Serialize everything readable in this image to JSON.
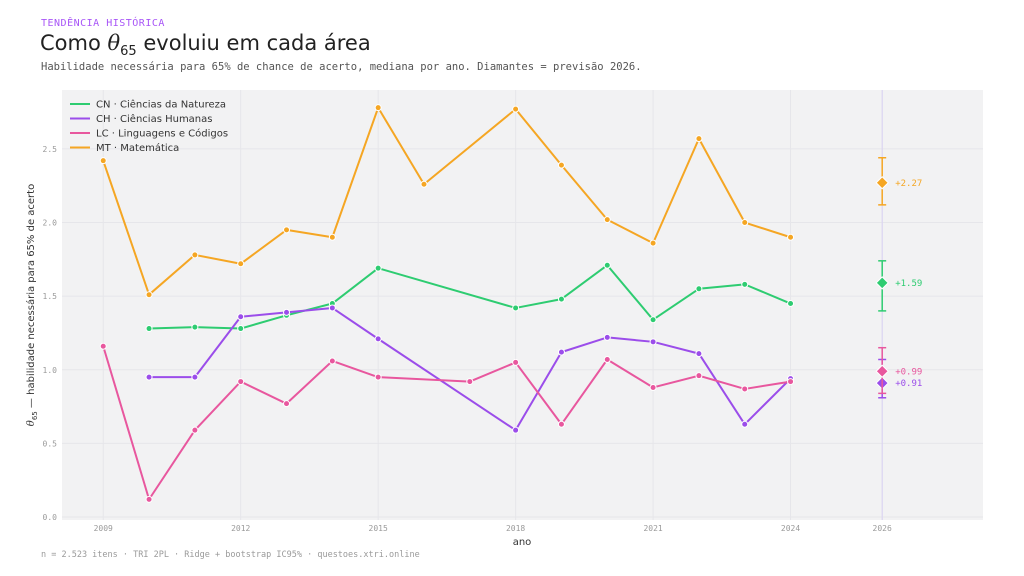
{
  "header": {
    "kicker": "TENDÊNCIA HISTÓRICA",
    "title_pre": "Como ",
    "title_theta": "θ",
    "title_sub": "65",
    "title_post": " evoluiu em cada área",
    "subtitle": "Habilidade necessária para 65% de chance de acerto, mediana por ano. Diamantes = previsão 2026."
  },
  "footer": {
    "text": "n = 2.523 itens  ·  TRI 2PL  ·  Ridge + bootstrap IC95%  ·  questoes.xtri.online"
  },
  "chart_data": {
    "type": "line",
    "xlabel": "ano",
    "ylabel_theta": "θ",
    "ylabel_sub": "65",
    "ylabel_rest": " — habilidade necessária para 65% de acerto",
    "xlim": [
      2008.1,
      2028.2
    ],
    "ylim": [
      -0.02,
      2.9
    ],
    "x_ticks": [
      2009,
      2012,
      2015,
      2018,
      2021,
      2024,
      2026
    ],
    "y_ticks": [
      0.0,
      0.5,
      1.0,
      1.5,
      2.0,
      2.5
    ],
    "y_tick_labels": [
      "0.0",
      "0.5",
      "1.0",
      "1.5",
      "2.0",
      "2.5"
    ],
    "grid": true,
    "legend_position": "top-left",
    "series": [
      {
        "name": "CN · Ciências da Natureza",
        "color": "#2ecc71",
        "x": [
          2010,
          2011,
          2012,
          2013,
          2014,
          2015,
          2018,
          2019,
          2020,
          2021,
          2022,
          2023,
          2024
        ],
        "y": [
          1.28,
          1.29,
          1.28,
          1.37,
          1.45,
          1.69,
          1.42,
          1.48,
          1.71,
          1.34,
          1.55,
          1.58,
          1.45
        ],
        "forecast": {
          "x": 2026,
          "y": 1.59,
          "lo": 1.4,
          "hi": 1.74,
          "label": "+1.59"
        }
      },
      {
        "name": "CH · Ciências Humanas",
        "color": "#9b4dea",
        "x": [
          2010,
          2011,
          2012,
          2013,
          2014,
          2015,
          2018,
          2019,
          2020,
          2021,
          2022,
          2023,
          2024
        ],
        "y": [
          0.95,
          0.95,
          1.36,
          1.39,
          1.42,
          1.21,
          0.59,
          1.12,
          1.22,
          1.19,
          1.11,
          0.63,
          0.94
        ],
        "forecast": {
          "x": 2026,
          "y": 0.91,
          "lo": 0.81,
          "hi": 1.07,
          "label": "+0.91"
        }
      },
      {
        "name": "LC · Linguagens e Códigos",
        "color": "#e8579e",
        "x": [
          2009,
          2010,
          2011,
          2012,
          2013,
          2014,
          2015,
          2017,
          2018,
          2019,
          2020,
          2021,
          2022,
          2023,
          2024
        ],
        "y": [
          1.16,
          0.12,
          0.59,
          0.92,
          0.77,
          1.06,
          0.95,
          0.92,
          1.05,
          0.63,
          1.07,
          0.88,
          0.96,
          0.87,
          0.92
        ],
        "forecast": {
          "x": 2026,
          "y": 0.99,
          "lo": 0.84,
          "hi": 1.15,
          "label": "+0.99"
        }
      },
      {
        "name": "MT · Matemática",
        "color": "#f5a623",
        "x": [
          2009,
          2010,
          2011,
          2012,
          2013,
          2014,
          2015,
          2016,
          2018,
          2019,
          2020,
          2021,
          2022,
          2023,
          2024
        ],
        "y": [
          2.42,
          1.51,
          1.78,
          1.72,
          1.95,
          1.9,
          2.78,
          2.26,
          2.77,
          2.39,
          2.02,
          1.86,
          2.57,
          2.0,
          1.9
        ],
        "forecast": {
          "x": 2026,
          "y": 2.27,
          "lo": 2.12,
          "hi": 2.44,
          "label": "+2.27"
        }
      }
    ]
  }
}
